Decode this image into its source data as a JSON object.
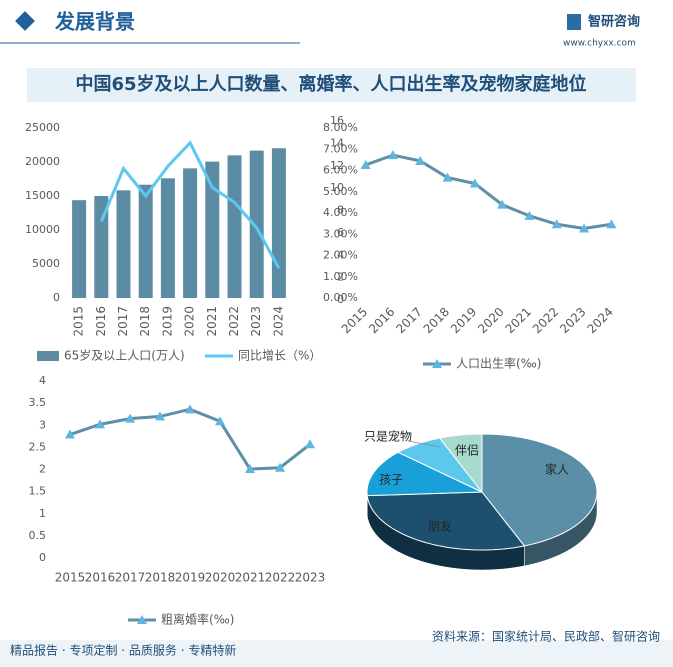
{
  "header": {
    "title": "发展背景",
    "logo": "智研咨询",
    "url": "www.chyxx.com"
  },
  "main_title": "中国65岁及以上人口数量、离婚率、人口出生率及宠物家庭地位",
  "chart_data": [
    {
      "type": "bar",
      "categories": [
        "2015",
        "2016",
        "2017",
        "2018",
        "2019",
        "2020",
        "2021",
        "2022",
        "2023",
        "2024"
      ],
      "series": [
        {
          "name": "65岁及以上人口(万人)",
          "color": "#5b8ca4",
          "values": [
            14386,
            15003,
            15831,
            16658,
            17603,
            19064,
            20056,
            20978,
            21676,
            22023
          ]
        },
        {
          "name": "同比增长（%）",
          "color": "#5bc8f0",
          "type": "line",
          "axis": "y2",
          "values": [
            null,
            3.6,
            6.1,
            4.8,
            6.2,
            7.3,
            5.2,
            4.5,
            3.3,
            1.4
          ]
        }
      ],
      "ylim": [
        0,
        25000
      ],
      "yticks": [
        0,
        5000,
        10000,
        15000,
        20000,
        25000
      ],
      "y2lim": [
        0,
        8
      ],
      "y2ticks": [
        {
          "value": 0,
          "label": "0.00%"
        },
        {
          "value": 1,
          "label": "1.00%"
        },
        {
          "value": 2,
          "label": "2.00%"
        },
        {
          "value": 3,
          "label": "3.00%"
        },
        {
          "value": 4,
          "label": "4.00%"
        },
        {
          "value": 5,
          "label": "5.00%"
        },
        {
          "value": 6,
          "label": "6.00%"
        },
        {
          "value": 7,
          "label": "7.00%"
        },
        {
          "value": 8,
          "label": "8.00%"
        }
      ]
    },
    {
      "type": "line",
      "categories": [
        "2015",
        "2016",
        "2017",
        "2018",
        "2019",
        "2020",
        "2021",
        "2022",
        "2023",
        "2024"
      ],
      "series": [
        {
          "name": "人口出生率(‰)",
          "color": "#5f8fa6",
          "values": [
            12.07,
            12.95,
            12.43,
            10.94,
            10.41,
            8.52,
            7.52,
            6.77,
            6.39,
            6.77
          ]
        }
      ],
      "ylim": [
        0,
        16
      ],
      "yticks": [
        0,
        2,
        4,
        6,
        8,
        10,
        12,
        14,
        16
      ]
    },
    {
      "type": "line",
      "categories": [
        "2015",
        "2016",
        "2017",
        "2018",
        "2019",
        "2020",
        "2021",
        "2022",
        "2023"
      ],
      "series": [
        {
          "name": "粗离婚率(‰)",
          "color": "#5f8fa6",
          "values": [
            2.79,
            3.02,
            3.15,
            3.2,
            3.36,
            3.09,
            2.01,
            2.04,
            2.57
          ]
        }
      ],
      "ylim": [
        0,
        4
      ],
      "yticks": [
        0,
        0.5,
        1,
        1.5,
        2,
        2.5,
        3,
        3.5,
        4
      ]
    },
    {
      "type": "pie",
      "categories": [
        "家人",
        "朋友",
        "孩子",
        "只是宠物",
        "伴侣"
      ],
      "values": [
        44,
        30,
        13,
        7,
        6
      ],
      "colors": [
        "#5b8fa8",
        "#1d4f6e",
        "#1aa0d8",
        "#5bc8ec",
        "#a7d9cc"
      ]
    }
  ],
  "footer": {
    "slogan": "精品报告 · 专项定制 · 品质服务 · 专精特新",
    "source": "资料来源：国家统计局、民政部、智研咨询"
  }
}
